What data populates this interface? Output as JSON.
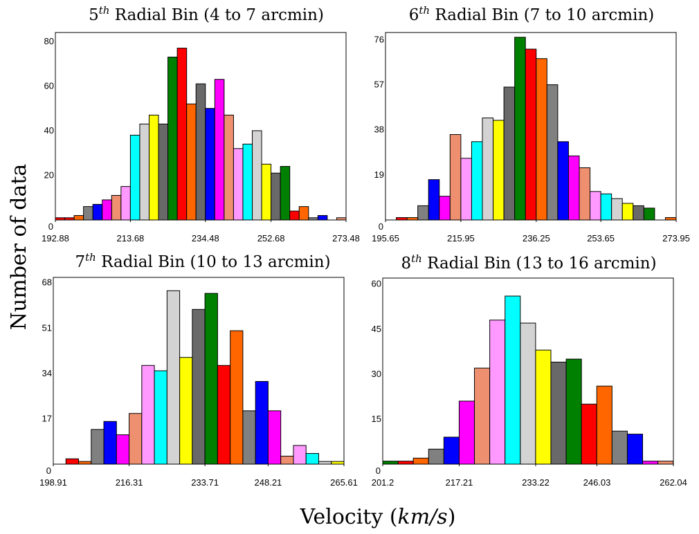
{
  "figure": {
    "ylabel": "Number of data",
    "xlabel_prefix": "Velocity (",
    "xlabel_unit": "km/s",
    "xlabel_suffix": ")"
  },
  "palette": [
    "#ff0000",
    "#ff6600",
    "#808080",
    "#0000ff",
    "#ff00ff",
    "#ee9070",
    "#ff99ff",
    "#00ffff",
    "#d3d3d3",
    "#ffff00",
    "#696969",
    "#008000"
  ],
  "chart_data": [
    {
      "type": "bar",
      "title_num": "5",
      "title_sup": "th",
      "title_rest": " Radial Bin (4 to 7 arcmin)",
      "xlim": [
        192.88,
        273.48
      ],
      "ylim": [
        0,
        84
      ],
      "yticks": [
        "20",
        "40",
        "60",
        "80"
      ],
      "ytick_values": [
        20,
        40,
        60,
        80
      ],
      "ytick_zero": "0",
      "xticks": [
        "192.88",
        "213.68",
        "234.48",
        "252.68",
        "273.48"
      ],
      "xtick_values": [
        192.88,
        213.68,
        234.48,
        252.68,
        273.48
      ],
      "bin_start": 192.88,
      "bin_width": 2.6,
      "counts": [
        1,
        1,
        2,
        6,
        7,
        9,
        11,
        15,
        38,
        43,
        47,
        43,
        73,
        77,
        52,
        61,
        50,
        63,
        47,
        32,
        34,
        40,
        25,
        21,
        24,
        4,
        6,
        1,
        2,
        0,
        1
      ],
      "colors": [
        0,
        0,
        1,
        2,
        3,
        4,
        5,
        6,
        7,
        8,
        9,
        10,
        11,
        0,
        1,
        10,
        3,
        4,
        5,
        6,
        7,
        8,
        9,
        10,
        11,
        0,
        1,
        2,
        3,
        4,
        5
      ]
    },
    {
      "type": "bar",
      "title_num": "6",
      "title_sup": "th",
      "title_rest": " Radial Bin (7 to 10 arcmin)",
      "xlim": [
        195.65,
        273.95
      ],
      "ylim": [
        0,
        79
      ],
      "yticks": [
        "19",
        "38",
        "57",
        "76"
      ],
      "ytick_values": [
        19,
        38,
        57,
        76
      ],
      "ytick_zero": "0",
      "xticks": [
        "195.65",
        "215.95",
        "236.25",
        "253.65",
        "273.95"
      ],
      "xtick_values": [
        195.65,
        215.95,
        236.25,
        253.65,
        273.95
      ],
      "bin_start": 195.65,
      "bin_width": 2.9,
      "counts": [
        0,
        1,
        1,
        6,
        17,
        10,
        36,
        26,
        33,
        43,
        42,
        56,
        77,
        72,
        68,
        57,
        33,
        27,
        22,
        12,
        11,
        9,
        7,
        6,
        5,
        0,
        1
      ],
      "colors": [
        0,
        0,
        1,
        2,
        3,
        4,
        5,
        6,
        7,
        8,
        9,
        10,
        11,
        0,
        1,
        2,
        3,
        4,
        5,
        6,
        7,
        8,
        9,
        10,
        11,
        0,
        1
      ]
    },
    {
      "type": "bar",
      "title_num": "7",
      "title_sup": "th",
      "title_rest": " Radial Bin (10 to 13 arcmin)",
      "xlim": [
        198.91,
        265.61
      ],
      "ylim": [
        0,
        70
      ],
      "yticks": [
        "17",
        "34",
        "51",
        "68"
      ],
      "ytick_values": [
        17,
        34,
        51,
        68
      ],
      "ytick_zero": "0",
      "xticks": [
        "198.91",
        "216.31",
        "233.71",
        "248.21",
        "265.61"
      ],
      "xtick_values": [
        198.91,
        216.31,
        233.71,
        248.21,
        265.61
      ],
      "bin_start": 198.91,
      "bin_width": 2.9,
      "counts": [
        0,
        2,
        1,
        13,
        16,
        11,
        19,
        37,
        35,
        65,
        40,
        58,
        64,
        37,
        50,
        20,
        31,
        20,
        3,
        7,
        4,
        1,
        1
      ],
      "colors": [
        0,
        0,
        1,
        2,
        3,
        4,
        5,
        6,
        7,
        8,
        9,
        10,
        11,
        0,
        1,
        2,
        3,
        4,
        5,
        6,
        7,
        8,
        9
      ]
    },
    {
      "type": "bar",
      "title_num": "8",
      "title_sup": "th",
      "title_rest": " Radial Bin (13 to 16 arcmin)",
      "xlim": [
        201.2,
        262.04
      ],
      "ylim": [
        0,
        62
      ],
      "yticks": [
        "15",
        "30",
        "45",
        "60"
      ],
      "ytick_values": [
        15,
        30,
        45,
        60
      ],
      "ytick_zero": "0",
      "xticks": [
        "201.2",
        "217.21",
        "233.22",
        "246.03",
        "262.04"
      ],
      "xtick_values": [
        201.2,
        217.21,
        233.22,
        246.03,
        262.04
      ],
      "bin_start": 201.2,
      "bin_width": 3.2,
      "counts": [
        1,
        1,
        2,
        5,
        9,
        21,
        32,
        48,
        56,
        47,
        38,
        34,
        35,
        20,
        26,
        11,
        10,
        1,
        1
      ],
      "colors": [
        11,
        0,
        1,
        2,
        3,
        4,
        5,
        6,
        7,
        8,
        9,
        10,
        11,
        0,
        1,
        2,
        3,
        4,
        5
      ]
    }
  ]
}
